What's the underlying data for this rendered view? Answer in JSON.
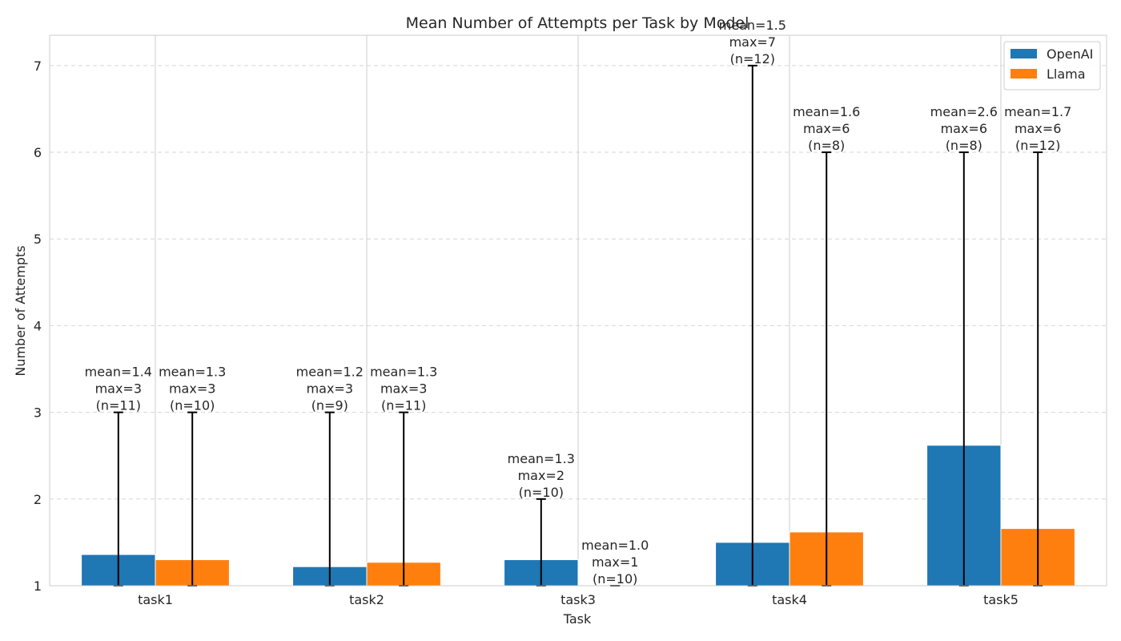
{
  "chart_data": {
    "type": "bar",
    "title": "Mean Number of Attempts per Task by Model",
    "xlabel": "Task",
    "ylabel": "Number of Attempts",
    "categories": [
      "task1",
      "task2",
      "task3",
      "task4",
      "task5"
    ],
    "ylim": [
      1,
      7.35
    ],
    "yticks": [
      1,
      2,
      3,
      4,
      5,
      6,
      7
    ],
    "grid": true,
    "legend_position": "top-right",
    "series": [
      {
        "name": "OpenAI",
        "color": "#1f77b4",
        "values": [
          1.36,
          1.22,
          1.3,
          1.5,
          2.62
        ],
        "max": [
          3,
          3,
          2,
          7,
          6
        ],
        "labels": [
          [
            "mean=1.4",
            "max=3",
            "(n=11)"
          ],
          [
            "mean=1.2",
            "max=3",
            "(n=9)"
          ],
          [
            "mean=1.3",
            "max=2",
            "(n=10)"
          ],
          [
            "mean=1.5",
            "max=7",
            "(n=12)"
          ],
          [
            "mean=2.6",
            "max=6",
            "(n=8)"
          ]
        ]
      },
      {
        "name": "Llama",
        "color": "#ff7f0e",
        "values": [
          1.3,
          1.27,
          1.0,
          1.62,
          1.66
        ],
        "max": [
          3,
          3,
          1,
          6,
          6
        ],
        "labels": [
          [
            "mean=1.3",
            "max=3",
            "(n=10)"
          ],
          [
            "mean=1.3",
            "max=3",
            "(n=11)"
          ],
          [
            "mean=1.0",
            "max=1",
            "(n=10)"
          ],
          [
            "mean=1.6",
            "max=6",
            "(n=8)"
          ],
          [
            "mean=1.7",
            "max=6",
            "(n=12)"
          ]
        ]
      }
    ]
  }
}
